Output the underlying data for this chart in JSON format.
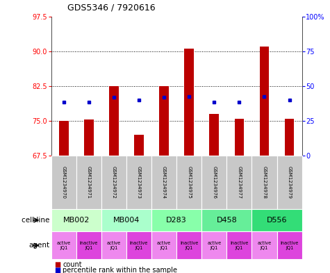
{
  "title": "GDS5346 / 7920616",
  "samples": [
    "GSM1234970",
    "GSM1234971",
    "GSM1234972",
    "GSM1234973",
    "GSM1234974",
    "GSM1234975",
    "GSM1234976",
    "GSM1234977",
    "GSM1234978",
    "GSM1234979"
  ],
  "bar_values": [
    75.0,
    75.3,
    82.5,
    72.0,
    82.5,
    90.5,
    76.5,
    75.5,
    91.0,
    75.5
  ],
  "bar_base": 67.5,
  "percentile_values": [
    79.0,
    79.0,
    80.0,
    79.5,
    80.0,
    80.2,
    79.0,
    79.0,
    80.2,
    79.5
  ],
  "left_yticks": [
    67.5,
    75.0,
    82.5,
    90.0,
    97.5
  ],
  "right_ytick_labels": [
    "0",
    "25",
    "50",
    "75",
    "100%"
  ],
  "right_yticks": [
    0,
    25,
    50,
    75,
    100
  ],
  "left_ylim": [
    67.5,
    97.5
  ],
  "right_ylim": [
    0,
    100
  ],
  "bar_color": "#bb0000",
  "percentile_color": "#0000cc",
  "cell_lines": [
    {
      "label": "MB002",
      "cols": [
        0,
        1
      ],
      "color": "#ccffcc"
    },
    {
      "label": "MB004",
      "cols": [
        2,
        3
      ],
      "color": "#aaffcc"
    },
    {
      "label": "D283",
      "cols": [
        4,
        5
      ],
      "color": "#88ffaa"
    },
    {
      "label": "D458",
      "cols": [
        6,
        7
      ],
      "color": "#66ee99"
    },
    {
      "label": "D556",
      "cols": [
        8,
        9
      ],
      "color": "#33dd77"
    }
  ],
  "agents": [
    "active\nJQ1",
    "inactive\nJQ1",
    "active\nJQ1",
    "inactive\nJQ1",
    "active\nJQ1",
    "inactive\nJQ1",
    "active\nJQ1",
    "inactive\nJQ1",
    "active\nJQ1",
    "inactive\nJQ1"
  ],
  "agent_bg_active": "#ee88ee",
  "agent_bg_inactive": "#dd44dd",
  "gsm_bg": "#c8c8c8",
  "gsm_bg_alt": "#b8b8b8"
}
